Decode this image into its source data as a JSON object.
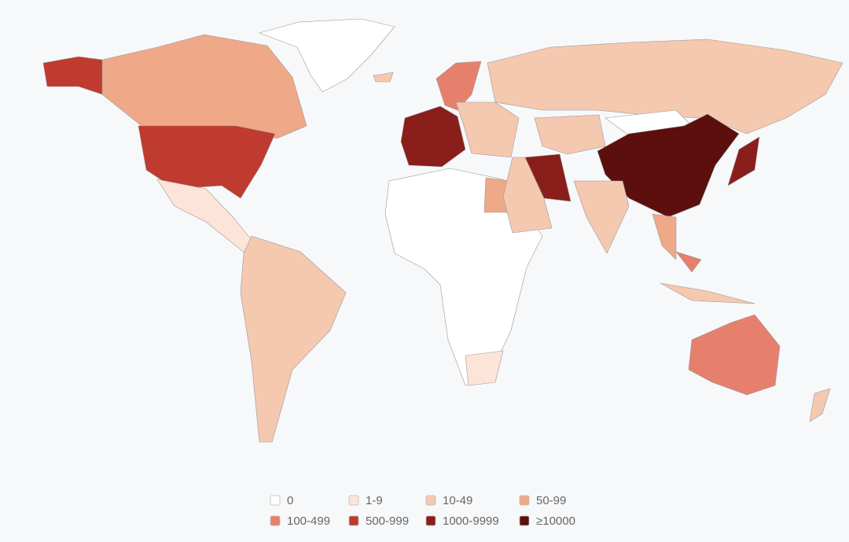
{
  "legend": {
    "items": [
      {
        "label": "0",
        "color": "#ffffff"
      },
      {
        "label": "1-9",
        "color": "#fde4d8"
      },
      {
        "label": "10-49",
        "color": "#f5c8b0"
      },
      {
        "label": "50-99",
        "color": "#efa888"
      },
      {
        "label": "100-499",
        "color": "#e6806c"
      },
      {
        "label": "500-999",
        "color": "#bf3a2f"
      },
      {
        "label": "1000-9999",
        "color": "#8a1e1a"
      },
      {
        "label": "≥10000",
        "color": "#5c0f0d"
      }
    ]
  }
}
